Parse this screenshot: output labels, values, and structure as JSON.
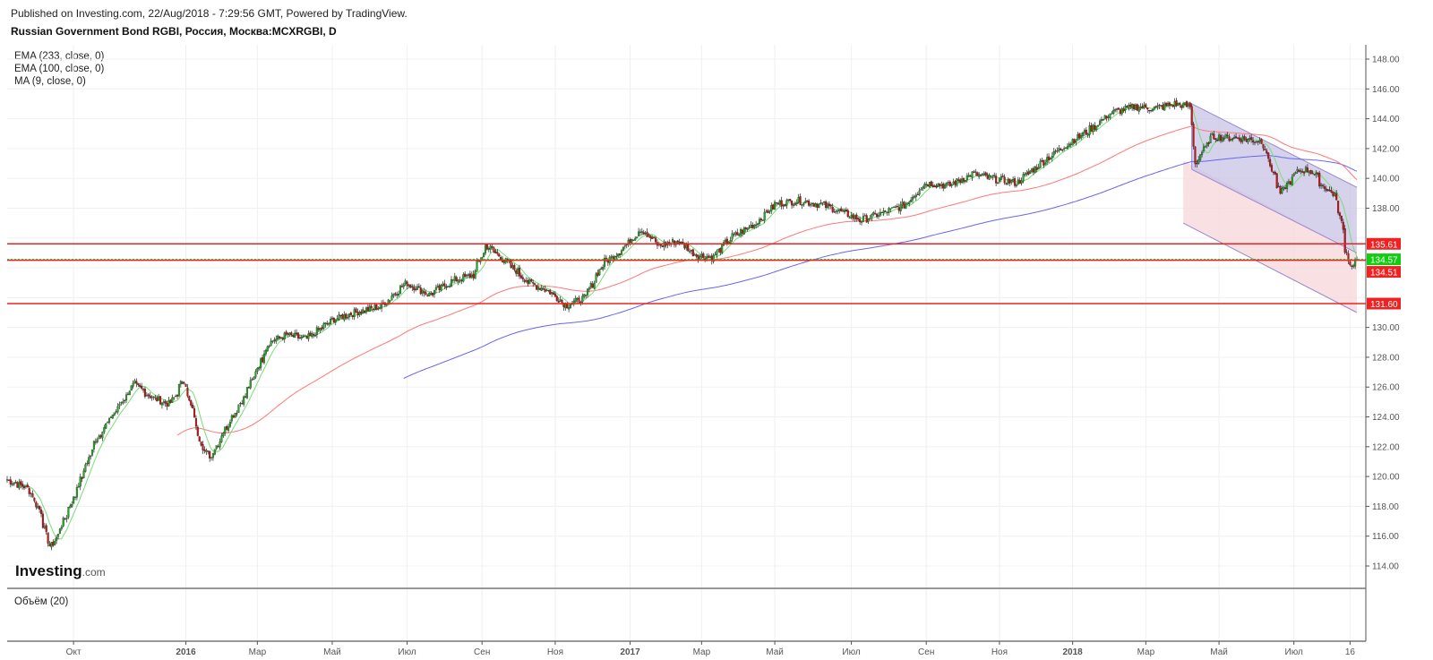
{
  "header": {
    "published": "Published on Investing.com, 22/Aug/2018 - 7:29:56 GMT, Powered by TradingView.",
    "title": "Russian Government Bond RGBI, Россия, Москва:MCXRGBI, D"
  },
  "legend": [
    "EMA (233, close, 0)",
    "EMA (100, close, 0)",
    "MA (9, close, 0)"
  ],
  "volume_label": "Объём (20)",
  "logo": {
    "main": "Investing",
    "suffix": ".com"
  },
  "colors": {
    "up": "#22aa22",
    "down": "#cc1111",
    "ema233": "#6666ee",
    "ema100": "#ff7777",
    "ma9": "#77dd77",
    "hline": "#ee2222",
    "last": "#11cc11",
    "channel_fill": "#c8c3e6",
    "lower_fill": "#f8d8dc"
  },
  "chart_data": {
    "type": "candlestick",
    "title": "Russian Government Bond RGBI, Россия, Москва:MCXRGBI, D",
    "start_date": "2015-08-07",
    "end_date": "2018-08-22",
    "ylim": [
      112.6,
      149.3
    ],
    "y_ticks": [
      "114.00",
      "116.00",
      "118.00",
      "120.00",
      "122.00",
      "124.00",
      "126.00",
      "128.00",
      "130.00",
      "132.00",
      "134.00",
      "136.00",
      "138.00",
      "140.00",
      "142.00",
      "144.00",
      "146.00",
      "148.00"
    ],
    "x_ticks": [
      {
        "label": "Окт",
        "date": "2015-10-01",
        "bold": false
      },
      {
        "label": "2016",
        "date": "2016-01-01",
        "bold": true
      },
      {
        "label": "Мар",
        "date": "2016-03-01",
        "bold": false
      },
      {
        "label": "Май",
        "date": "2016-05-01",
        "bold": false
      },
      {
        "label": "Июл",
        "date": "2016-07-01",
        "bold": false
      },
      {
        "label": "Сен",
        "date": "2016-09-01",
        "bold": false
      },
      {
        "label": "Ноя",
        "date": "2016-11-01",
        "bold": false
      },
      {
        "label": "2017",
        "date": "2017-01-01",
        "bold": true
      },
      {
        "label": "Мар",
        "date": "2017-03-01",
        "bold": false
      },
      {
        "label": "Май",
        "date": "2017-05-01",
        "bold": false
      },
      {
        "label": "Июл",
        "date": "2017-07-01",
        "bold": false
      },
      {
        "label": "Сен",
        "date": "2017-09-01",
        "bold": false
      },
      {
        "label": "Ноя",
        "date": "2017-11-01",
        "bold": false
      },
      {
        "label": "2018",
        "date": "2018-01-01",
        "bold": true
      },
      {
        "label": "Мар",
        "date": "2018-03-01",
        "bold": false
      },
      {
        "label": "Май",
        "date": "2018-05-01",
        "bold": false
      },
      {
        "label": "Июл",
        "date": "2018-07-01",
        "bold": false
      },
      {
        "label": "16",
        "date": "2018-08-16",
        "bold": false
      }
    ],
    "close_keypoints": [
      [
        "2015-08-07",
        119.8
      ],
      [
        "2015-08-25",
        119.2
      ],
      [
        "2015-09-05",
        117.5
      ],
      [
        "2015-09-12",
        115.0
      ],
      [
        "2015-09-20",
        116.4
      ],
      [
        "2015-10-01",
        118.5
      ],
      [
        "2015-10-20",
        122.5
      ],
      [
        "2015-11-05",
        124.4
      ],
      [
        "2015-11-20",
        126.2
      ],
      [
        "2015-12-05",
        125.3
      ],
      [
        "2015-12-20",
        124.8
      ],
      [
        "2015-12-31",
        126.5
      ],
      [
        "2016-01-15",
        122.0
      ],
      [
        "2016-01-22",
        121.3
      ],
      [
        "2016-02-05",
        123.5
      ],
      [
        "2016-02-20",
        125.5
      ],
      [
        "2016-03-10",
        129.0
      ],
      [
        "2016-03-25",
        129.5
      ],
      [
        "2016-04-10",
        129.2
      ],
      [
        "2016-05-01",
        130.5
      ],
      [
        "2016-05-20",
        131.0
      ],
      [
        "2016-06-10",
        131.4
      ],
      [
        "2016-07-01",
        133.0
      ],
      [
        "2016-07-20",
        132.2
      ],
      [
        "2016-08-10",
        133.2
      ],
      [
        "2016-08-25",
        133.5
      ],
      [
        "2016-09-05",
        135.5
      ],
      [
        "2016-09-20",
        134.5
      ],
      [
        "2016-10-10",
        133.0
      ],
      [
        "2016-10-25",
        132.5
      ],
      [
        "2016-11-10",
        131.5
      ],
      [
        "2016-11-25",
        132.0
      ],
      [
        "2016-12-10",
        134.3
      ],
      [
        "2016-12-25",
        135.2
      ],
      [
        "2017-01-10",
        136.6
      ],
      [
        "2017-01-25",
        135.5
      ],
      [
        "2017-02-10",
        135.8
      ],
      [
        "2017-02-25",
        134.8
      ],
      [
        "2017-03-10",
        134.7
      ],
      [
        "2017-03-25",
        136.0
      ],
      [
        "2017-04-15",
        137.0
      ],
      [
        "2017-05-01",
        138.3
      ],
      [
        "2017-05-20",
        138.5
      ],
      [
        "2017-06-10",
        138.2
      ],
      [
        "2017-06-25",
        137.7
      ],
      [
        "2017-07-10",
        137.2
      ],
      [
        "2017-07-25",
        137.6
      ],
      [
        "2017-08-15",
        138.2
      ],
      [
        "2017-09-01",
        139.7
      ],
      [
        "2017-09-20",
        139.5
      ],
      [
        "2017-10-10",
        140.3
      ],
      [
        "2017-10-25",
        140.0
      ],
      [
        "2017-11-15",
        139.7
      ],
      [
        "2017-12-05",
        141.0
      ],
      [
        "2017-12-25",
        142.2
      ],
      [
        "2018-01-15",
        143.3
      ],
      [
        "2018-02-01",
        144.4
      ],
      [
        "2018-02-20",
        144.8
      ],
      [
        "2018-03-10",
        144.7
      ],
      [
        "2018-03-25",
        145.0
      ],
      [
        "2018-04-08",
        144.8
      ],
      [
        "2018-04-11",
        141.0
      ],
      [
        "2018-04-25",
        142.8
      ],
      [
        "2018-05-15",
        142.7
      ],
      [
        "2018-06-05",
        142.5
      ],
      [
        "2018-06-20",
        139.0
      ],
      [
        "2018-07-05",
        140.5
      ],
      [
        "2018-07-15",
        140.6
      ],
      [
        "2018-07-25",
        139.5
      ],
      [
        "2018-08-05",
        138.8
      ],
      [
        "2018-08-12",
        135.6
      ],
      [
        "2018-08-17",
        134.0
      ],
      [
        "2018-08-22",
        134.57
      ]
    ],
    "indicators": [
      {
        "name": "EMA (233, close, 0)",
        "period": 233,
        "kind": "ema"
      },
      {
        "name": "EMA (100, close, 0)",
        "period": 100,
        "kind": "ema"
      },
      {
        "name": "MA (9, close, 0)",
        "period": 9,
        "kind": "sma"
      }
    ],
    "horizontal_levels": [
      {
        "value": 135.61,
        "label": "135.61",
        "style": "solid"
      },
      {
        "value": 134.51,
        "label": "134.51",
        "style": "solid"
      },
      {
        "value": 131.6,
        "label": "131.60",
        "style": "solid"
      },
      {
        "value": 134.57,
        "label": "134.57",
        "style": "last-price"
      }
    ],
    "channel": {
      "upper": [
        [
          "2018-04-09",
          145.0
        ],
        [
          "2018-08-22",
          139.4
        ]
      ],
      "middle": [
        [
          "2018-04-09",
          140.6
        ],
        [
          "2018-08-22",
          135.0
        ]
      ],
      "lower": [
        [
          "2018-04-02",
          137.0
        ],
        [
          "2018-08-22",
          131.0
        ]
      ],
      "lower_start_top": [
        [
          "2018-04-02",
          141.2
        ]
      ]
    }
  }
}
